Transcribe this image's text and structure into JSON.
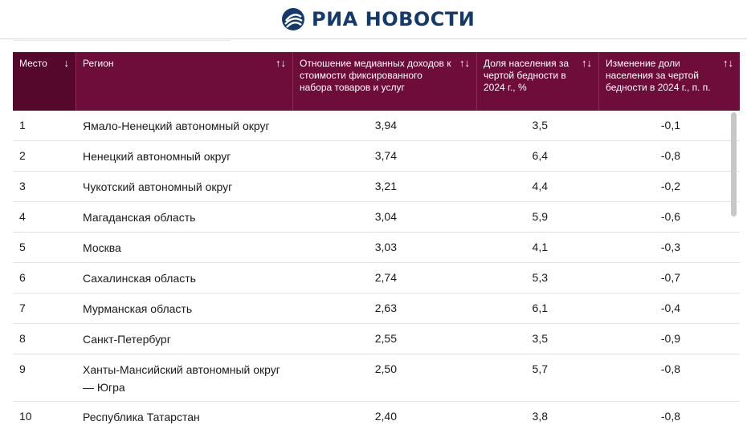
{
  "header": {
    "brand": "РИА НОВОСТИ",
    "brand_color": "#133a6a",
    "logo_icon": "ria-logo-icon"
  },
  "table": {
    "header_color": "#6f0d3a",
    "columns": [
      {
        "label": "Место",
        "sort_icon": "↓"
      },
      {
        "label": "Регион",
        "sort_icon": "↑↓"
      },
      {
        "label": "Отношение медианных доходов к стоимости фиксированного набора товаров и услуг",
        "sort_icon": "↑↓"
      },
      {
        "label": "Доля населения за чертой бедности в 2024 г., %",
        "sort_icon": "↑↓"
      },
      {
        "label": "Изменение доли населения за чертой бедности в 2024 г., п. п.",
        "sort_icon": "↑↓"
      }
    ],
    "rows": [
      {
        "rank": "1",
        "region": "Ямало-Ненецкий автономный округ",
        "ratio": "3,94",
        "poverty": "3,5",
        "change": "-0,1"
      },
      {
        "rank": "2",
        "region": "Ненецкий автономный округ",
        "ratio": "3,74",
        "poverty": "6,4",
        "change": "-0,8"
      },
      {
        "rank": "3",
        "region": "Чукотский автономный округ",
        "ratio": "3,21",
        "poverty": "4,4",
        "change": "-0,2"
      },
      {
        "rank": "4",
        "region": "Магаданская область",
        "ratio": "3,04",
        "poverty": "5,9",
        "change": "-0,6"
      },
      {
        "rank": "5",
        "region": "Москва",
        "ratio": "3,03",
        "poverty": "4,1",
        "change": "-0,3"
      },
      {
        "rank": "6",
        "region": "Сахалинская область",
        "ratio": "2,74",
        "poverty": "5,3",
        "change": "-0,7"
      },
      {
        "rank": "7",
        "region": "Мурманская область",
        "ratio": "2,63",
        "poverty": "6,1",
        "change": "-0,4"
      },
      {
        "rank": "8",
        "region": "Санкт-Петербург",
        "ratio": "2,55",
        "poverty": "3,5",
        "change": "-0,9"
      },
      {
        "rank": "9",
        "region": "Ханты-Мансийский автономный округ — Югра",
        "ratio": "2,50",
        "poverty": "5,7",
        "change": "-0,8"
      },
      {
        "rank": "10",
        "region": "Республика Татарстан",
        "ratio": "2,40",
        "poverty": "3,8",
        "change": "-0,8"
      }
    ]
  }
}
